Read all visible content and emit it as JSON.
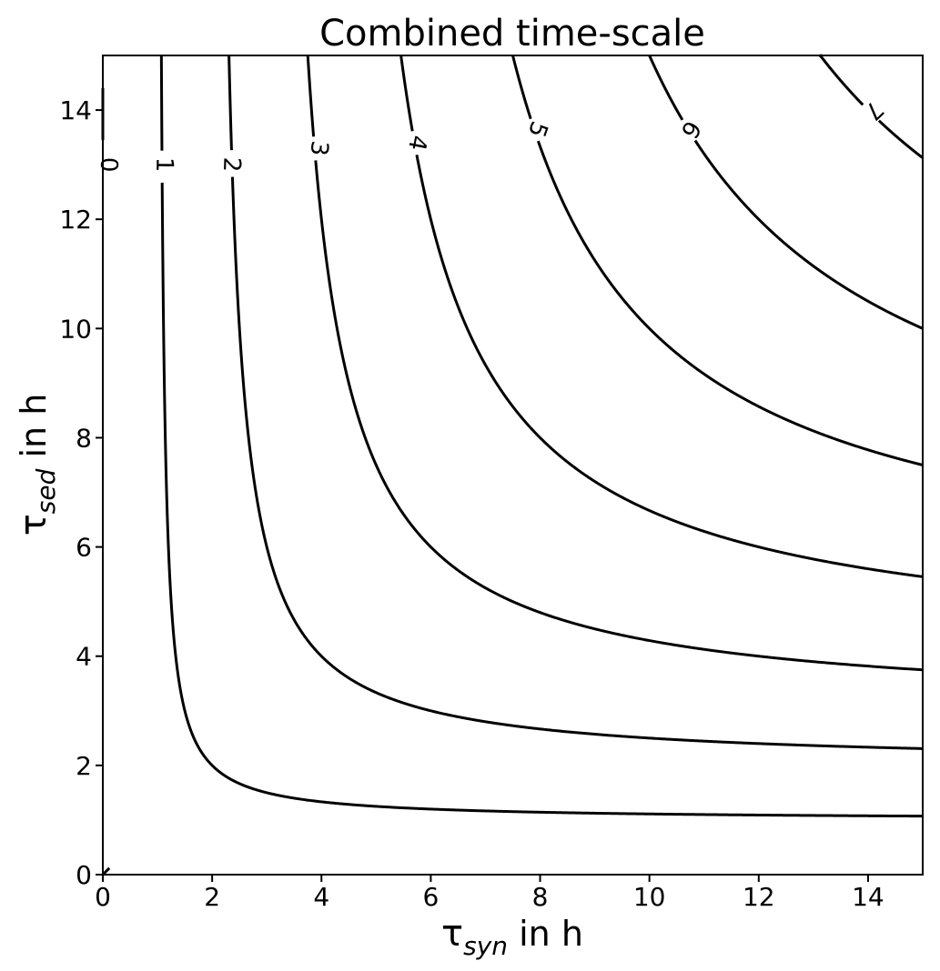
{
  "chart_data": {
    "type": "contour",
    "title": "Combined time-scale",
    "xlabel": {
      "symbol": "τ",
      "sub": "syn",
      "suffix": " in h"
    },
    "ylabel": {
      "symbol": "τ",
      "sub": "sed",
      "suffix": " in h"
    },
    "xlim": [
      0,
      15
    ],
    "ylim": [
      0,
      15
    ],
    "xticks": [
      0,
      2,
      4,
      6,
      8,
      10,
      12,
      14
    ],
    "yticks": [
      0,
      2,
      4,
      6,
      8,
      10,
      12,
      14
    ],
    "xtick_labels": [
      "0",
      "2",
      "4",
      "6",
      "8",
      "10",
      "12",
      "14"
    ],
    "ytick_labels": [
      "0",
      "2",
      "4",
      "6",
      "8",
      "10",
      "12",
      "14"
    ],
    "grid": false,
    "line_color": "#000000",
    "function": "1/(1/x + 1/y)",
    "levels": [
      {
        "level": 0,
        "label": "0",
        "label_at": [
          0.1,
          13.0
        ]
      },
      {
        "level": 1,
        "label": "1",
        "label_at": [
          1.12,
          13.0
        ]
      },
      {
        "level": 2,
        "label": "2",
        "label_at": [
          2.35,
          13.0
        ]
      },
      {
        "level": 3,
        "label": "3",
        "label_at": [
          3.95,
          13.3
        ]
      },
      {
        "level": 4,
        "label": "4",
        "label_at": [
          5.75,
          13.4
        ]
      },
      {
        "level": 5,
        "label": "5",
        "label_at": [
          7.95,
          13.65
        ]
      },
      {
        "level": 6,
        "label": "6",
        "label_at": [
          10.75,
          13.65
        ]
      },
      {
        "level": 7,
        "label": "7",
        "label_at": [
          14.1,
          14.0
        ]
      }
    ]
  }
}
